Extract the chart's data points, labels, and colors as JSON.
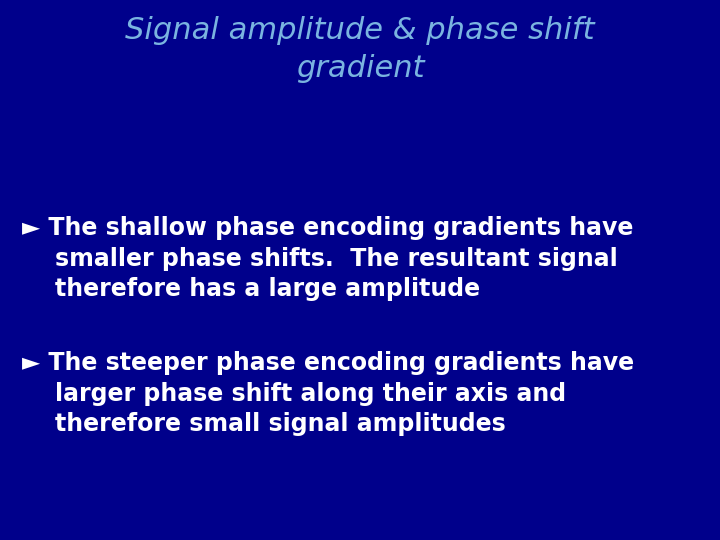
{
  "title_line1": "Signal amplitude & phase shift",
  "title_line2": "gradient",
  "title_color": "#7ab4e0",
  "title_fontsize": 22,
  "background_color": "#00008B",
  "bullet_color": "#ffffff",
  "bullet1_lines": [
    "► The shallow phase encoding gradients have",
    "    smaller phase shifts.  The resultant signal",
    "    therefore has a large amplitude"
  ],
  "bullet2_lines": [
    "► The steeper phase encoding gradients have",
    "    larger phase shift along their axis and",
    "    therefore small signal amplitudes"
  ],
  "body_fontsize": 17,
  "figsize": [
    7.2,
    5.4
  ],
  "dpi": 100
}
